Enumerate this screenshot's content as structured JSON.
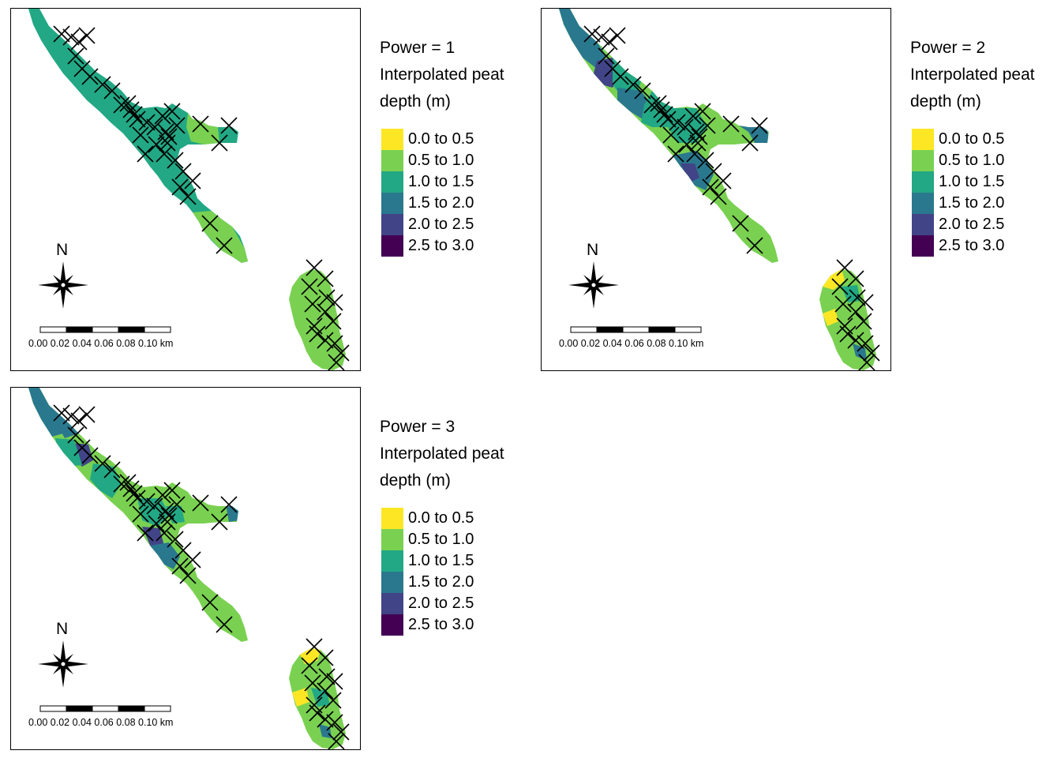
{
  "colors": {
    "yellow": "#fde725",
    "green": "#7ad151",
    "teal": "#22a884",
    "blue": "#2a788e",
    "indigo": "#414487",
    "purple": "#440154",
    "cross": "#000000",
    "frame": "#000000"
  },
  "legend_entries": [
    {
      "label": "0.0 to 0.5",
      "color": "#fde725"
    },
    {
      "label": "0.5 to 1.0",
      "color": "#7ad151"
    },
    {
      "label": "1.0 to 1.5",
      "color": "#22a884"
    },
    {
      "label": "1.5 to 2.0",
      "color": "#2a788e"
    },
    {
      "label": "2.0 to 2.5",
      "color": "#414487"
    },
    {
      "label": "2.5 to 3.0",
      "color": "#440154"
    }
  ],
  "legend_title_line2": "Interpolated peat",
  "legend_title_line3": "depth (m)",
  "north_label": "N",
  "scale_bar_label": "0.00 0.02 0.04 0.06 0.08 0.10 km",
  "panels": [
    {
      "title": "Power = 1",
      "fill_main": "#22a884",
      "fill_south": "#7ad151"
    },
    {
      "title": "Power = 2",
      "fill_main": "#7ad151",
      "fill_south": "#7ad151"
    },
    {
      "title": "Power = 3",
      "fill_main": "#7ad151",
      "fill_south": "#7ad151"
    }
  ]
}
